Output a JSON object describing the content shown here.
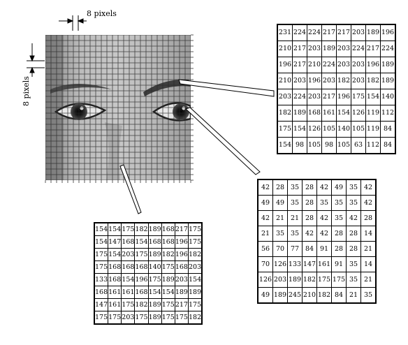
{
  "labels": {
    "horizontal_spacing": "8 pixels",
    "vertical_spacing": "8 pixels"
  },
  "blocks": [
    {
      "id": "eyebrow",
      "rows": [
        [
          231,
          224,
          224,
          217,
          217,
          203,
          189,
          196
        ],
        [
          210,
          217,
          203,
          189,
          203,
          224,
          217,
          224
        ],
        [
          196,
          217,
          210,
          224,
          203,
          203,
          196,
          189
        ],
        [
          210,
          203,
          196,
          203,
          182,
          203,
          182,
          189
        ],
        [
          203,
          224,
          203,
          217,
          196,
          175,
          154,
          140
        ],
        [
          182,
          189,
          168,
          161,
          154,
          126,
          119,
          112
        ],
        [
          175,
          154,
          126,
          105,
          140,
          105,
          119,
          84
        ],
        [
          154,
          98,
          105,
          98,
          105,
          63,
          112,
          84
        ]
      ]
    },
    {
      "id": "eye",
      "rows": [
        [
          42,
          28,
          35,
          28,
          42,
          49,
          35,
          42
        ],
        [
          49,
          49,
          35,
          28,
          35,
          35,
          35,
          42
        ],
        [
          42,
          21,
          21,
          28,
          42,
          35,
          42,
          28
        ],
        [
          21,
          35,
          35,
          42,
          42,
          28,
          28,
          14
        ],
        [
          56,
          70,
          77,
          84,
          91,
          28,
          28,
          21
        ],
        [
          70,
          126,
          133,
          147,
          161,
          91,
          35,
          14
        ],
        [
          126,
          203,
          189,
          182,
          175,
          175,
          35,
          21
        ],
        [
          49,
          189,
          245,
          210,
          182,
          84,
          21,
          35
        ]
      ]
    },
    {
      "id": "cheek",
      "rows": [
        [
          154,
          154,
          175,
          182,
          189,
          168,
          217,
          175
        ],
        [
          154,
          147,
          168,
          154,
          168,
          168,
          196,
          175
        ],
        [
          175,
          154,
          203,
          175,
          189,
          182,
          196,
          182
        ],
        [
          175,
          168,
          168,
          168,
          140,
          175,
          168,
          203
        ],
        [
          133,
          168,
          154,
          196,
          175,
          189,
          203,
          154
        ],
        [
          168,
          161,
          161,
          168,
          154,
          154,
          189,
          189
        ],
        [
          147,
          161,
          175,
          182,
          189,
          175,
          217,
          175
        ],
        [
          175,
          175,
          203,
          175,
          189,
          175,
          175,
          182
        ]
      ]
    }
  ]
}
